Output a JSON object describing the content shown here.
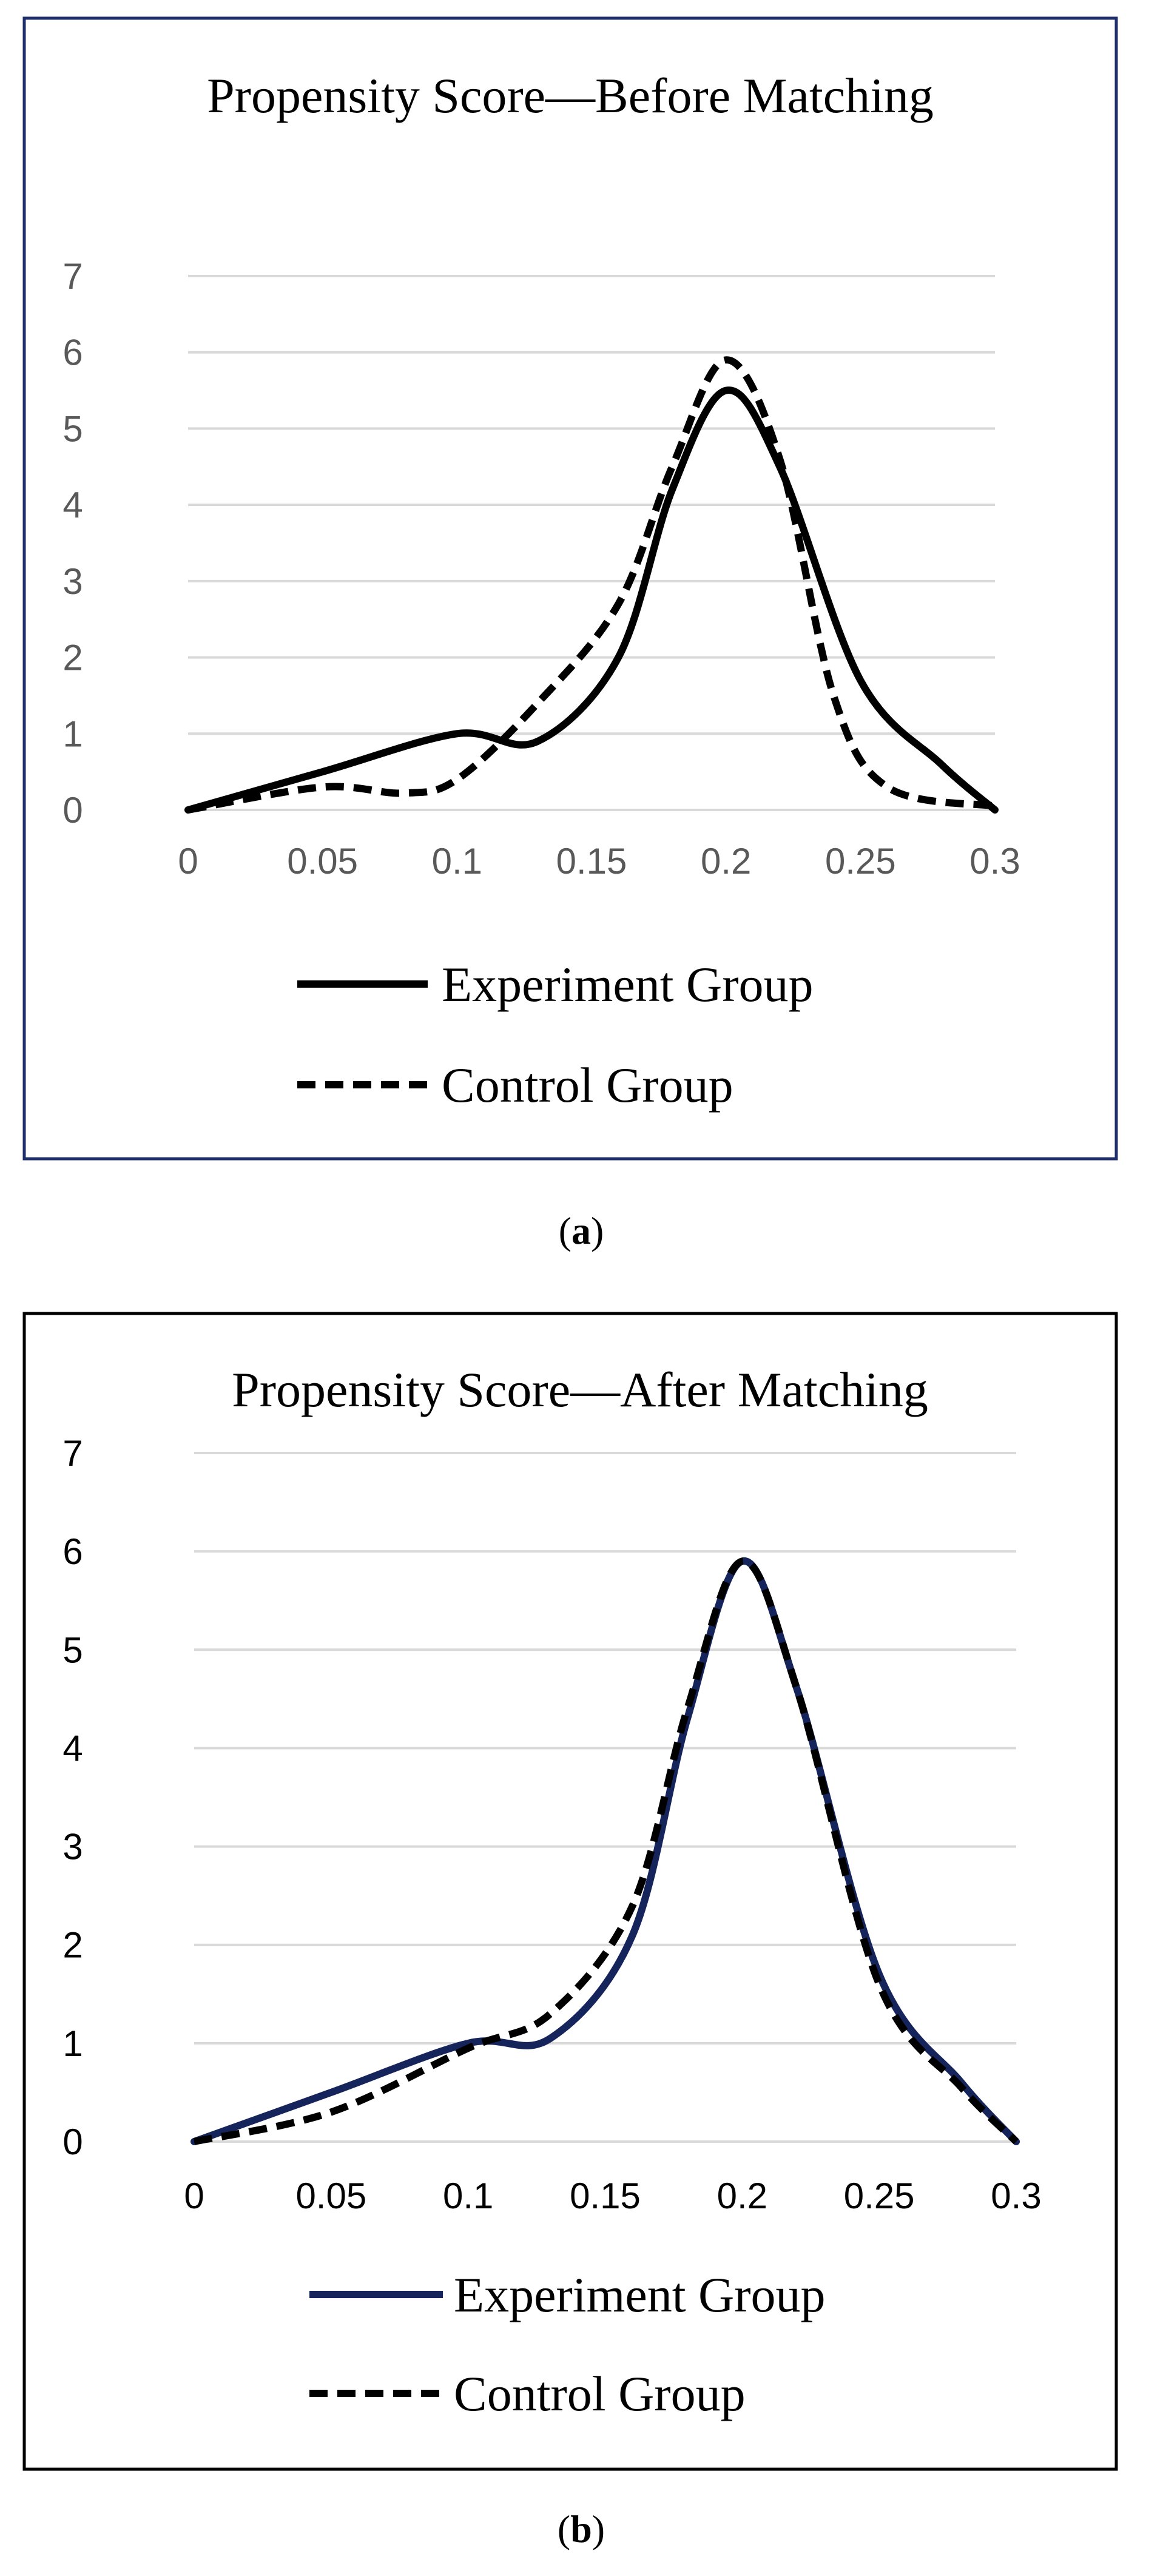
{
  "colors": {
    "frame_a": "#1f2f6b",
    "frame_b": "#000000",
    "experiment_a": "#000000",
    "experiment_b": "#16245c",
    "control": "#000000",
    "grid": "#d9d9d9"
  },
  "chart_data": [
    {
      "type": "line",
      "title": "Propensity Score—Before Matching",
      "caption_prefix": "(",
      "caption_letter": "a",
      "caption_suffix": ")",
      "xlabel": "",
      "ylabel": "",
      "xlim": [
        0,
        0.3
      ],
      "ylim": [
        0,
        7
      ],
      "x_ticks": [
        0,
        0.05,
        0.1,
        0.15,
        0.2,
        0.25,
        0.3
      ],
      "x_tick_labels": [
        "0",
        "0.05",
        "0.1",
        "0.15",
        "0.2",
        "0.25",
        "0.3"
      ],
      "y_ticks": [
        0,
        1,
        2,
        3,
        4,
        5,
        6,
        7
      ],
      "y_tick_labels": [
        "0",
        "1",
        "2",
        "3",
        "4",
        "5",
        "6",
        "7"
      ],
      "grid": true,
      "legend_position": "bottom",
      "series": [
        {
          "name": "Experiment Group",
          "style": "solid",
          "x": [
            0,
            0.05,
            0.1,
            0.13,
            0.16,
            0.18,
            0.2,
            0.22,
            0.25,
            0.28,
            0.3
          ],
          "values": [
            0,
            0.5,
            1.0,
            0.9,
            2.0,
            4.2,
            5.5,
            4.5,
            1.7,
            0.6,
            0
          ]
        },
        {
          "name": "Control Group",
          "style": "dashed",
          "x": [
            0,
            0.05,
            0.08,
            0.1,
            0.13,
            0.16,
            0.18,
            0.2,
            0.22,
            0.24,
            0.26,
            0.3
          ],
          "values": [
            0,
            0.3,
            0.22,
            0.4,
            1.4,
            2.7,
            4.5,
            5.9,
            4.6,
            1.5,
            0.3,
            0.05
          ]
        }
      ]
    },
    {
      "type": "line",
      "title": "Propensity Score—After Matching",
      "caption_prefix": "(",
      "caption_letter": "b",
      "caption_suffix": ")",
      "xlabel": "",
      "ylabel": "",
      "xlim": [
        0,
        0.3
      ],
      "ylim": [
        0,
        7
      ],
      "x_ticks": [
        0,
        0.05,
        0.1,
        0.15,
        0.2,
        0.25,
        0.3
      ],
      "x_tick_labels": [
        "0",
        "0.05",
        "0.1",
        "0.15",
        "0.2",
        "0.25",
        "0.3"
      ],
      "y_ticks": [
        0,
        1,
        2,
        3,
        4,
        5,
        6,
        7
      ],
      "y_tick_labels": [
        "0",
        "1",
        "2",
        "3",
        "4",
        "5",
        "6",
        "7"
      ],
      "grid": true,
      "legend_position": "bottom",
      "series": [
        {
          "name": "Experiment Group",
          "style": "solid",
          "x": [
            0,
            0.05,
            0.1,
            0.13,
            0.16,
            0.18,
            0.2,
            0.22,
            0.25,
            0.28,
            0.3
          ],
          "values": [
            0,
            0.5,
            1.0,
            1.05,
            2.1,
            4.3,
            5.9,
            4.6,
            1.7,
            0.6,
            0
          ]
        },
        {
          "name": "Control Group",
          "style": "dashed",
          "x": [
            0,
            0.05,
            0.1,
            0.13,
            0.16,
            0.18,
            0.2,
            0.22,
            0.25,
            0.28,
            0.3
          ],
          "values": [
            0,
            0.3,
            0.95,
            1.3,
            2.4,
            4.4,
            5.9,
            4.6,
            1.6,
            0.55,
            0
          ]
        }
      ]
    }
  ]
}
